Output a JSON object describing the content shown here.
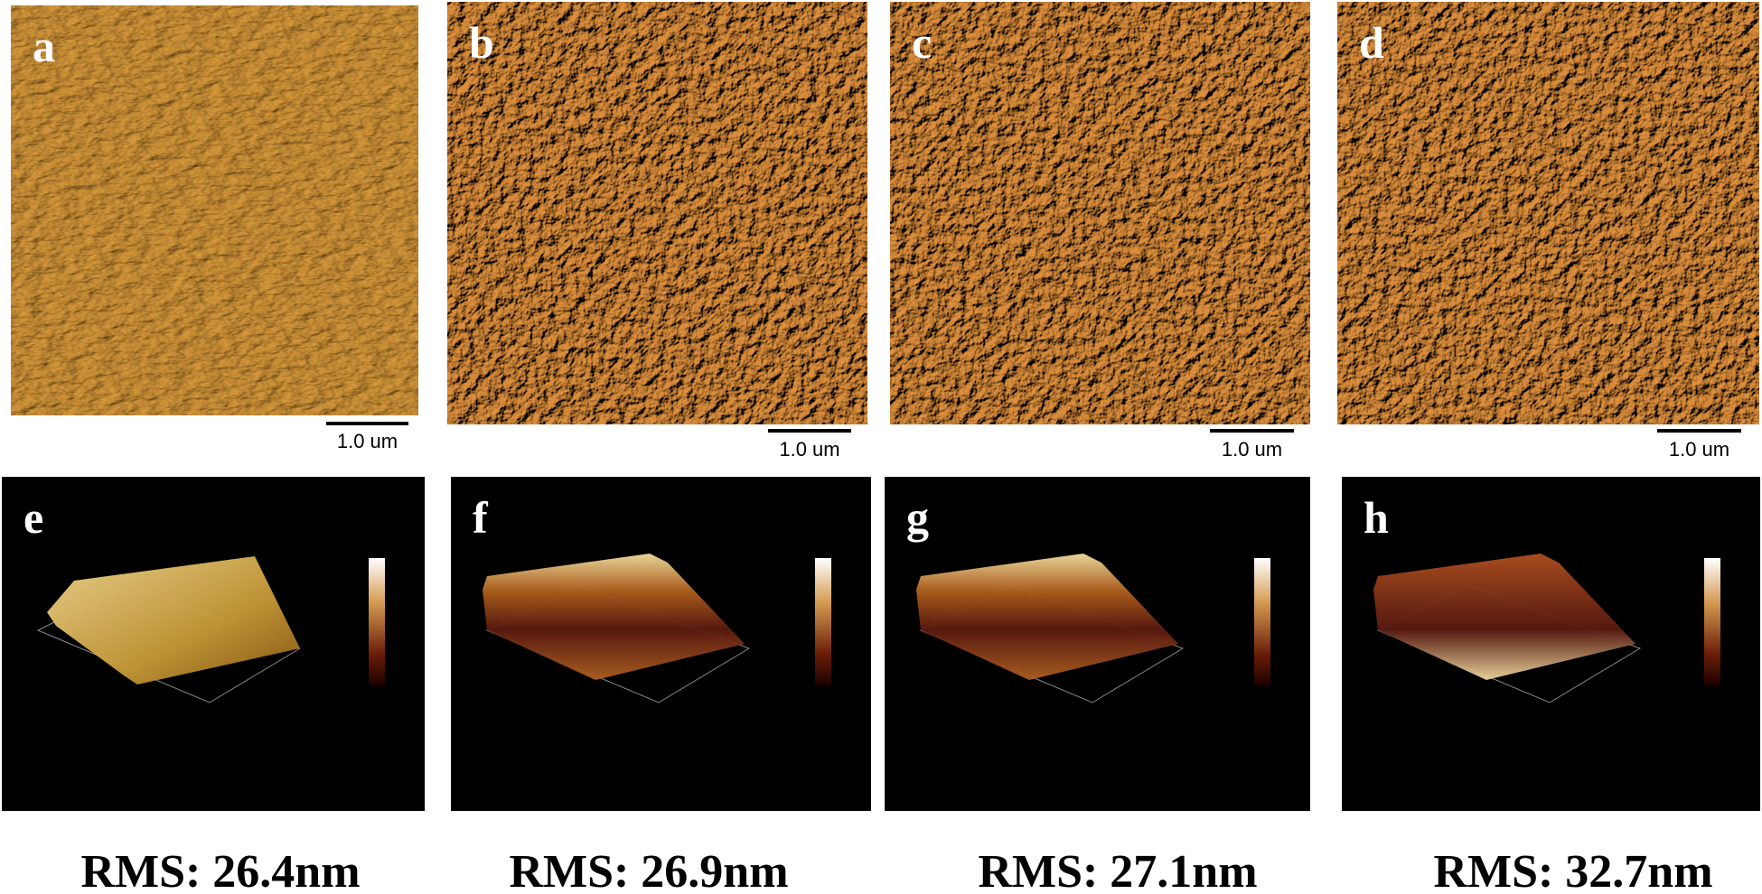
{
  "panels": [
    {
      "label": "a",
      "scale_bar": "1.0 um"
    },
    {
      "label": "b",
      "scale_bar": "1.0 um"
    },
    {
      "label": "c",
      "scale_bar": "1.0 um"
    },
    {
      "label": "d",
      "scale_bar": "1.0 um"
    }
  ],
  "panels_3d": [
    {
      "label": "e",
      "rms": "RMS: 26.4nm"
    },
    {
      "label": "f",
      "rms": "RMS: 26.9nm"
    },
    {
      "label": "g",
      "rms": "RMS: 27.1nm"
    },
    {
      "label": "h",
      "rms": "RMS: 32.7nm"
    }
  ]
}
